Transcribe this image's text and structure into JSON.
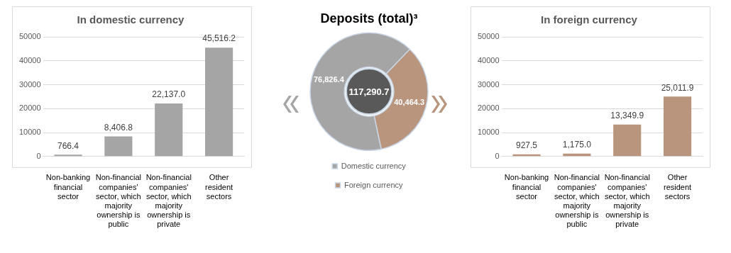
{
  "chart_data": [
    {
      "type": "bar",
      "title": "In domestic currency",
      "categories": [
        "Non-banking financial sector",
        "Non-financial companies' sector, which majority ownership is public",
        "Non-financial companies' sector, which majority ownership is private",
        "Other resident sectors"
      ],
      "values": [
        766.4,
        8406.8,
        22137.0,
        45516.2
      ],
      "value_labels": [
        "766.4",
        "8,406.8",
        "22,137.0",
        "45,516.2"
      ],
      "color": "#a5a5a5",
      "ylim": [
        0,
        50000
      ],
      "yticks": [
        0,
        10000,
        20000,
        30000,
        40000,
        50000
      ],
      "grid": "y",
      "legend": false
    },
    {
      "type": "donut",
      "title": "Deposits (total)³",
      "categories": [
        "Domestic currency",
        "Foreign currency"
      ],
      "values": [
        76826.4,
        40464.3
      ],
      "value_labels": [
        "76,826.4",
        "40,464.3"
      ],
      "colors": [
        "#a5a5a5",
        "#b9957d"
      ],
      "annotations": [
        "117,290.7"
      ],
      "legend": "bottom"
    },
    {
      "type": "bar",
      "title": "In foreign currency",
      "categories": [
        "Non-banking financial sector",
        "Non-financial companies' sector, which majority ownership is public",
        "Non-financial companies' sector, which majority ownership is private",
        "Other resident sectors"
      ],
      "values": [
        927.5,
        1175.0,
        13349.9,
        25011.9
      ],
      "value_labels": [
        "927.5",
        "1,175.0",
        "13,349.9",
        "25,011.9"
      ],
      "color": "#b9957d",
      "ylim": [
        0,
        50000
      ],
      "yticks": [
        0,
        10000,
        20000,
        30000,
        40000,
        50000
      ],
      "grid": "y",
      "legend": false
    }
  ]
}
